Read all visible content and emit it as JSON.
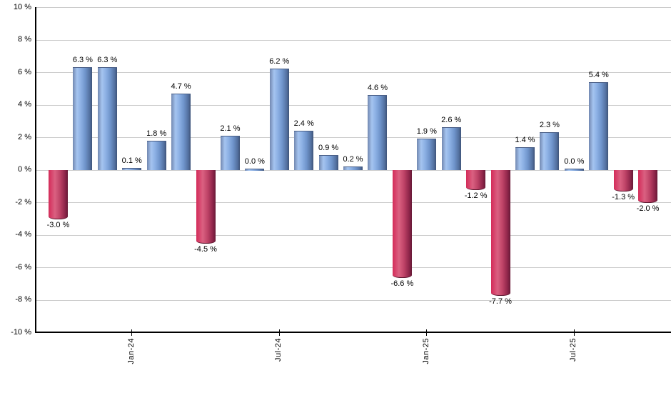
{
  "chart_data": {
    "type": "bar",
    "title": "",
    "xlabel": "",
    "ylabel": "",
    "values": [
      -3.0,
      6.3,
      6.3,
      0.1,
      1.8,
      4.7,
      -4.5,
      2.1,
      0.0,
      6.2,
      2.4,
      0.9,
      0.2,
      4.6,
      -6.6,
      1.9,
      2.6,
      -1.2,
      -7.7,
      1.4,
      2.3,
      0.0,
      5.4,
      -1.3,
      -2.0
    ],
    "bar_labels": [
      "-3.0 %",
      "6.3 %",
      "6.3 %",
      "0.1 %",
      "1.8 %",
      "4.7 %",
      "-4.5 %",
      "2.1 %",
      "0.0 %",
      "6.2 %",
      "2.4 %",
      "0.9 %",
      "0.2 %",
      "4.6 %",
      "-6.6 %",
      "1.9 %",
      "2.6 %",
      "-1.2 %",
      "-7.7 %",
      "1.4 %",
      "2.3 %",
      "0.0 %",
      "5.4 %",
      "-1.3 %",
      "-2.0 %"
    ],
    "x_ticks": [
      {
        "index": 3,
        "label": "Jan-24"
      },
      {
        "index": 9,
        "label": "Jul-24"
      },
      {
        "index": 15,
        "label": "Jan-25"
      },
      {
        "index": 21,
        "label": "Jul-25"
      }
    ],
    "y_tick_labels": [
      "10 %",
      "8 %",
      "6 %",
      "4 %",
      "2 %",
      "0 %",
      "-2 %",
      "-4 %",
      "-6 %",
      "-8 %",
      "-10 %"
    ],
    "y_tick_values": [
      10,
      8,
      6,
      4,
      2,
      0,
      -2,
      -4,
      -6,
      -8,
      -10
    ],
    "ylim": [
      -10,
      10
    ],
    "grid": true,
    "legend": false,
    "positive_color": "#7fa5db",
    "negative_color": "#c83b63",
    "gridline_color": "#cccccc",
    "axis_color": "#000000"
  }
}
